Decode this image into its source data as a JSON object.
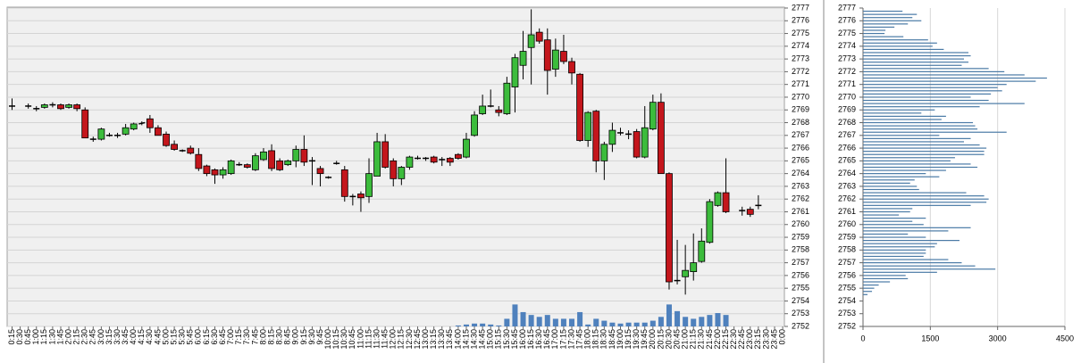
{
  "chart_data": [
    {
      "type": "candlestick",
      "categories": [
        "0:15",
        "0:30",
        "0:45",
        "1:00",
        "1:15",
        "1:30",
        "1:45",
        "2:00",
        "2:15",
        "2:30",
        "2:45",
        "3:00",
        "3:15",
        "3:30",
        "3:45",
        "4:00",
        "4:15",
        "4:30",
        "4:45",
        "5:00",
        "5:15",
        "5:30",
        "5:45",
        "6:00",
        "6:15",
        "6:30",
        "6:45",
        "7:00",
        "7:15",
        "7:30",
        "7:45",
        "8:00",
        "8:15",
        "8:30",
        "8:45",
        "9:00",
        "9:15",
        "9:30",
        "9:45",
        "10:00",
        "10:15",
        "10:30",
        "10:45",
        "11:00",
        "11:15",
        "11:30",
        "11:45",
        "12:00",
        "12:15",
        "12:30",
        "12:45",
        "13:00",
        "13:15",
        "13:30",
        "13:45",
        "14:00",
        "14:15",
        "14:30",
        "14:45",
        "15:00",
        "15:15",
        "15:30",
        "15:45",
        "16:00",
        "16:15",
        "16:30",
        "16:45",
        "17:00",
        "17:15",
        "17:30",
        "17:45",
        "18:00",
        "18:15",
        "18:30",
        "18:45",
        "19:00",
        "19:15",
        "19:30",
        "19:45",
        "20:00",
        "20:15",
        "20:30",
        "20:45",
        "21:00",
        "21:15",
        "21:30",
        "21:45",
        "22:00",
        "22:15",
        "22:30",
        "22:45",
        "23:00",
        "23:15",
        "23:30",
        "23:45",
        "0:00"
      ],
      "open": [
        2769.3,
        null,
        2769.3,
        2769.1,
        2769.2,
        2769.4,
        2769.4,
        2769.2,
        2769.4,
        2769.0,
        2766.7,
        2766.7,
        2767.0,
        2767.0,
        2767.1,
        2767.5,
        2767.9,
        2768.3,
        2767.6,
        2767.1,
        2766.3,
        2765.8,
        2766.0,
        2765.5,
        2764.6,
        2764.3,
        2763.9,
        2764.0,
        2764.7,
        2764.7,
        2764.3,
        2765.1,
        2765.8,
        2765.0,
        2764.7,
        2765.0,
        2765.9,
        2765.0,
        2764.4,
        2763.7,
        2764.8,
        2764.3,
        2762.2,
        2762.4,
        2762.2,
        2763.8,
        2766.5,
        2765.0,
        2763.6,
        2764.5,
        2765.2,
        2765.2,
        2765.3,
        2765.1,
        2765.2,
        2765.5,
        2765.3,
        2767.0,
        2768.7,
        2769.3,
        2769.0,
        2768.7,
        2770.8,
        2772.5,
        2773.9,
        2775.1,
        2774.5,
        2772.2,
        2773.6,
        2772.8,
        2771.8,
        2766.6,
        2768.9,
        2765.0,
        2766.3,
        2767.2,
        2767.1,
        2767.3,
        2765.3,
        2767.5,
        2769.6,
        2764.0,
        2755.6,
        2755.9,
        2756.3,
        2757.1,
        2758.6,
        2761.5,
        2762.5,
        null,
        2761.1,
        2761.2,
        2761.5,
        null,
        null,
        null
      ],
      "high": [
        2769.9,
        null,
        2769.5,
        2769.3,
        2769.5,
        2769.6,
        2769.5,
        2769.5,
        2769.5,
        2769.2,
        2766.9,
        2767.6,
        2767.2,
        2767.2,
        2767.9,
        2768.0,
        2768.1,
        2768.6,
        2767.8,
        2767.3,
        2766.6,
        2765.9,
        2766.2,
        2766.0,
        2764.7,
        2764.4,
        2764.5,
        2765.1,
        2764.9,
        2764.8,
        2765.6,
        2766.0,
        2766.3,
        2765.2,
        2765.1,
        2766.2,
        2767.0,
        2765.3,
        2764.6,
        2763.8,
        2765.0,
        2764.6,
        2762.4,
        2762.6,
        2765.2,
        2767.2,
        2767.1,
        2765.2,
        2764.6,
        2765.4,
        2765.4,
        2765.3,
        2765.4,
        2765.3,
        2765.3,
        2765.6,
        2767.2,
        2768.9,
        2770.2,
        2770.6,
        2769.3,
        2771.6,
        2773.4,
        2775.2,
        2776.9,
        2775.4,
        2775.4,
        2774.6,
        2774.9,
        2773.1,
        2771.9,
        2768.9,
        2769.0,
        2766.5,
        2768.0,
        2767.6,
        2767.4,
        2767.5,
        2769.3,
        2770.2,
        2770.3,
        2764.1,
        2758.8,
        2758.4,
        2759.3,
        2759.7,
        2762.0,
        2762.6,
        2765.2,
        null,
        2761.4,
        2761.4,
        2762.3,
        null,
        null,
        null
      ],
      "low": [
        2769.0,
        null,
        2769.1,
        2768.9,
        2769.1,
        2769.2,
        2769.0,
        2769.1,
        2768.9,
        2766.8,
        2766.5,
        2766.6,
        2766.9,
        2766.8,
        2767.0,
        2767.4,
        2767.8,
        2767.2,
        2767.0,
        2766.1,
        2765.8,
        2765.7,
        2765.5,
        2764.2,
        2763.8,
        2763.2,
        2763.6,
        2763.9,
        2764.6,
        2764.4,
        2764.2,
        2765.0,
        2764.2,
        2764.2,
        2764.6,
        2764.5,
        2764.6,
        2763.1,
        2763.0,
        2763.6,
        2764.7,
        2761.8,
        2761.5,
        2761.0,
        2761.7,
        2763.8,
        2764.4,
        2763.0,
        2763.1,
        2764.3,
        2765.1,
        2765.0,
        2764.8,
        2764.6,
        2764.6,
        2765.1,
        2765.2,
        2766.9,
        2768.6,
        2769.2,
        2768.5,
        2768.6,
        2768.8,
        2771.4,
        2771.0,
        2774.2,
        2770.2,
        2771.6,
        2772.6,
        2771.0,
        2766.5,
        2766.1,
        2764.1,
        2763.5,
        2765.7,
        2767.0,
        2766.7,
        2765.2,
        2765.2,
        2767.4,
        2764.0,
        2754.9,
        2755.3,
        2754.5,
        2755.6,
        2757.0,
        2758.5,
        2761.4,
        2760.9,
        null,
        2760.7,
        2760.6,
        2761.2,
        null,
        null,
        null
      ],
      "close": [
        2769.3,
        null,
        2769.3,
        2769.1,
        2769.4,
        2769.4,
        2769.1,
        2769.4,
        2769.1,
        2766.8,
        2766.7,
        2767.5,
        2767.0,
        2767.0,
        2767.6,
        2767.9,
        2768.0,
        2767.6,
        2767.0,
        2766.2,
        2765.9,
        2765.8,
        2765.6,
        2764.4,
        2764.0,
        2763.9,
        2764.3,
        2765.0,
        2764.7,
        2764.5,
        2765.4,
        2765.7,
        2764.4,
        2764.3,
        2765.0,
        2765.9,
        2764.9,
        2765.0,
        2764.0,
        2763.7,
        2764.8,
        2762.2,
        2762.2,
        2762.1,
        2764.0,
        2766.5,
        2764.5,
        2763.6,
        2764.5,
        2765.3,
        2765.2,
        2765.2,
        2764.9,
        2765.1,
        2764.9,
        2765.2,
        2766.7,
        2768.6,
        2769.3,
        2769.3,
        2768.8,
        2771.1,
        2773.1,
        2773.6,
        2774.9,
        2774.4,
        2772.1,
        2773.7,
        2772.8,
        2771.9,
        2766.6,
        2768.8,
        2765.0,
        2766.3,
        2767.4,
        2767.2,
        2767.1,
        2765.3,
        2767.6,
        2769.6,
        2764.0,
        2755.5,
        2755.6,
        2756.4,
        2757.0,
        2758.7,
        2761.8,
        2762.5,
        2761.0,
        null,
        2761.1,
        2760.8,
        2761.5,
        null,
        null,
        null
      ],
      "volume": [
        null,
        null,
        null,
        null,
        null,
        null,
        null,
        null,
        null,
        null,
        null,
        null,
        null,
        null,
        null,
        null,
        null,
        null,
        null,
        null,
        null,
        null,
        null,
        null,
        null,
        null,
        null,
        null,
        null,
        null,
        null,
        null,
        null,
        null,
        null,
        null,
        null,
        null,
        null,
        null,
        null,
        null,
        null,
        null,
        null,
        null,
        null,
        null,
        null,
        null,
        null,
        null,
        null,
        null,
        null,
        30,
        60,
        90,
        90,
        60,
        30,
        240,
        690,
        450,
        360,
        300,
        360,
        240,
        240,
        240,
        450,
        60,
        240,
        180,
        120,
        90,
        120,
        120,
        120,
        180,
        300,
        690,
        480,
        300,
        240,
        300,
        360,
        420,
        360,
        null,
        null,
        null,
        null,
        null,
        null,
        null
      ],
      "volume_ylim": [
        0,
        10000
      ],
      "up_color": "#3cbc3c",
      "down_color": "#c4161c",
      "volume_color": "#4f81bd",
      "ylim": [
        2752,
        2777
      ],
      "yticks": [
        2752,
        2753,
        2754,
        2755,
        2756,
        2757,
        2758,
        2759,
        2760,
        2761,
        2762,
        2763,
        2764,
        2765,
        2766,
        2767,
        2768,
        2769,
        2770,
        2771,
        2772,
        2773,
        2774,
        2775,
        2776,
        2777
      ],
      "grid": true
    },
    {
      "type": "bar",
      "horizontal": true,
      "color": "#4a7aa6",
      "categories": [
        2776.75,
        2776.5,
        2776.25,
        2776,
        2775.75,
        2775.5,
        2775.25,
        2775,
        2774.75,
        2774.5,
        2774.25,
        2774,
        2773.75,
        2773.5,
        2773.25,
        2773,
        2772.75,
        2772.5,
        2772.25,
        2772,
        2771.75,
        2771.5,
        2771.25,
        2771,
        2770.75,
        2770.5,
        2770.25,
        2770,
        2769.75,
        2769.5,
        2769.25,
        2769,
        2768.75,
        2768.5,
        2768.25,
        2768,
        2767.75,
        2767.5,
        2767.25,
        2767,
        2766.75,
        2766.5,
        2766.25,
        2766,
        2765.75,
        2765.5,
        2765.25,
        2765,
        2764.75,
        2764.5,
        2764.25,
        2764,
        2763.75,
        2763.5,
        2763.25,
        2763,
        2762.75,
        2762.5,
        2762.25,
        2762,
        2761.75,
        2761.5,
        2761.25,
        2761,
        2760.75,
        2760.5,
        2760.25,
        2760,
        2759.75,
        2759.5,
        2759.25,
        2759,
        2758.75,
        2758.5,
        2758.25,
        2758,
        2757.75,
        2757.5,
        2757.25,
        2757,
        2756.75,
        2756.5,
        2756.25,
        2756,
        2755.75,
        2755.5,
        2755.25,
        2755,
        2754.75,
        2754.5
      ],
      "values": [
        880,
        1200,
        1100,
        1300,
        1000,
        700,
        500,
        480,
        900,
        1450,
        1650,
        1550,
        1800,
        2350,
        2400,
        2250,
        2350,
        2200,
        2800,
        3150,
        3600,
        4100,
        3850,
        3200,
        3000,
        3100,
        2850,
        2400,
        2800,
        3600,
        2600,
        1600,
        1300,
        1850,
        1750,
        2450,
        2500,
        2550,
        3200,
        1700,
        2400,
        2250,
        2600,
        2750,
        2700,
        2700,
        2050,
        1950,
        2400,
        2550,
        1850,
        1400,
        1700,
        1150,
        1050,
        1200,
        1250,
        2300,
        2700,
        2800,
        2750,
        2400,
        1100,
        1050,
        800,
        1400,
        1100,
        1350,
        2400,
        1900,
        1000,
        1400,
        2150,
        1650,
        1600,
        1400,
        1400,
        1350,
        1900,
        2200,
        2500,
        2950,
        1650,
        950,
        1000,
        600,
        350,
        250,
        200,
        100
      ],
      "ylim": [
        2752,
        2777
      ],
      "yticks": [
        2752,
        2753,
        2754,
        2755,
        2756,
        2757,
        2758,
        2759,
        2760,
        2761,
        2762,
        2763,
        2764,
        2765,
        2766,
        2767,
        2768,
        2769,
        2770,
        2771,
        2772,
        2773,
        2774,
        2775,
        2776,
        2777
      ],
      "xlim": [
        0,
        4500
      ],
      "xticks": [
        0,
        1500,
        3000,
        4500
      ],
      "grid": true
    }
  ]
}
